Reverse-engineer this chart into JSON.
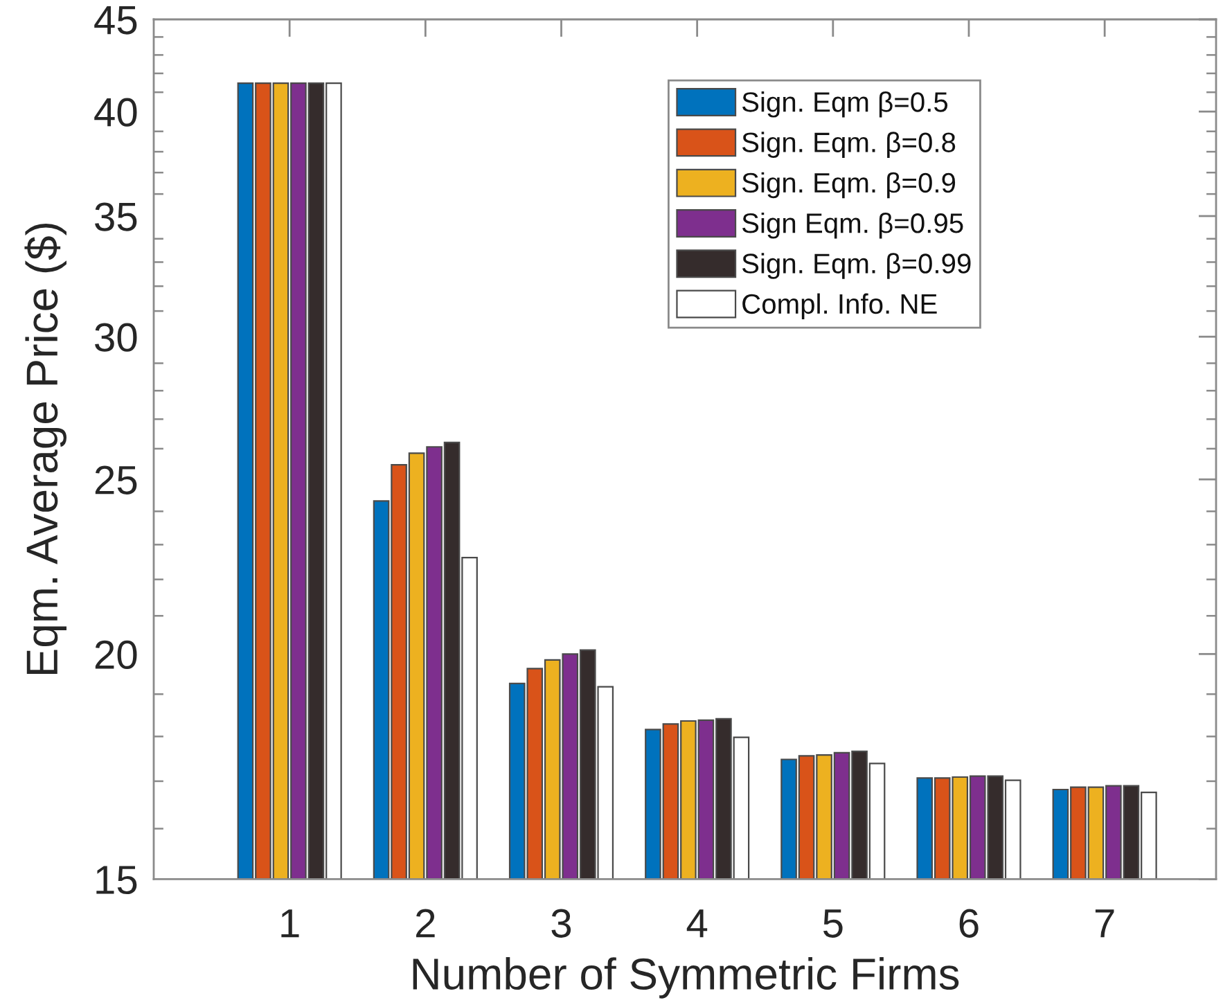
{
  "chart_data": {
    "type": "bar",
    "xlabel": "Number of Symmetric Firms",
    "ylabel": "Eqm. Average Price ($)",
    "categories": [
      "1",
      "2",
      "3",
      "4",
      "5",
      "6",
      "7"
    ],
    "series": [
      {
        "name": "Sign. Eqm β=0.5",
        "color": "#0072bd",
        "values": [
          41.48,
          24.32,
          19.26,
          18.16,
          17.48,
          17.07,
          16.82
        ]
      },
      {
        "name": "Sign. Eqm. β=0.8",
        "color": "#d95319",
        "values": [
          41.48,
          25.47,
          19.63,
          18.29,
          17.56,
          17.07,
          16.87
        ]
      },
      {
        "name": "Sign. Eqm. β=0.9",
        "color": "#edb120",
        "values": [
          41.48,
          25.85,
          19.85,
          18.36,
          17.58,
          17.09,
          16.87
        ]
      },
      {
        "name": "Sign Eqm. β=0.95",
        "color": "#7e2f8e",
        "values": [
          41.48,
          26.06,
          20.0,
          18.38,
          17.63,
          17.11,
          16.9
        ]
      },
      {
        "name": "Sign. Eqm. β=0.99",
        "color": "#352c2c",
        "values": [
          41.48,
          26.21,
          20.1,
          18.41,
          17.66,
          17.11,
          16.9
        ]
      },
      {
        "name": "Compl. Info. NE",
        "color": "#ffffff",
        "values": [
          41.48,
          22.62,
          19.18,
          17.98,
          17.39,
          17.02,
          16.76
        ]
      }
    ],
    "log": "y",
    "ylim": [
      15,
      45
    ],
    "yticks": [
      15,
      {
        "value": 16,
        "label": null
      },
      {
        "value": 17,
        "label": null
      },
      {
        "value": 18,
        "label": null
      },
      {
        "value": 19,
        "label": null
      },
      20,
      {
        "value": 21,
        "label": null
      },
      {
        "value": 22,
        "label": null
      },
      {
        "value": 23,
        "label": null
      },
      {
        "value": 24,
        "label": null
      },
      25,
      {
        "value": 26,
        "label": null
      },
      {
        "value": 27,
        "label": null
      },
      {
        "value": 28,
        "label": null
      },
      {
        "value": 29,
        "label": null
      },
      30,
      {
        "value": 31,
        "label": null
      },
      {
        "value": 32,
        "label": null
      },
      {
        "value": 33,
        "label": null
      },
      {
        "value": 34,
        "label": null
      },
      35,
      {
        "value": 36,
        "label": null
      },
      {
        "value": 37,
        "label": null
      },
      {
        "value": 38,
        "label": null
      },
      {
        "value": 39,
        "label": null
      },
      40,
      {
        "value": 41,
        "label": null
      },
      {
        "value": 42,
        "label": null
      },
      {
        "value": 43,
        "label": null
      },
      {
        "value": 44,
        "label": null
      },
      45
    ],
    "legend": "top right",
    "grid": false
  }
}
